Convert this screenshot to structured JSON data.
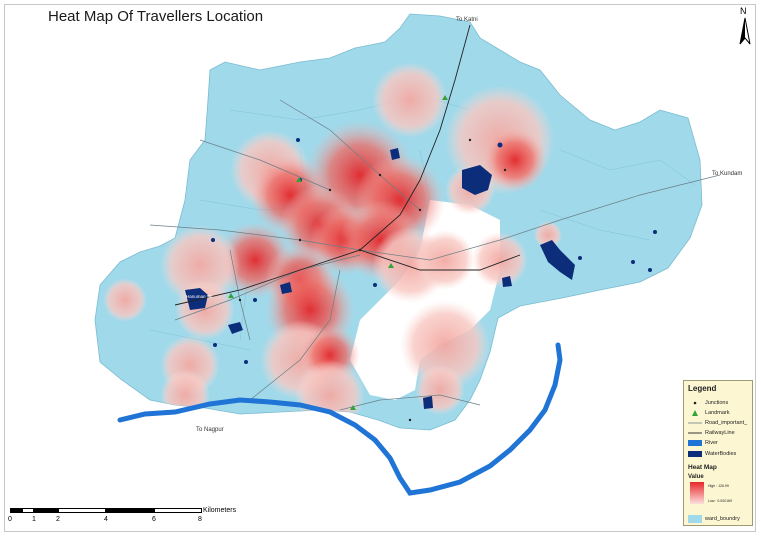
{
  "title": "Heat Map Of Travellers Location",
  "north_arrow": {
    "label": "N",
    "icon": "north-arrow-icon"
  },
  "directions": {
    "to_katni": "To Katni",
    "to_kundam": "To Kundam",
    "to_nagpur": "To Nagpur"
  },
  "water_label": "Hanuman Tal",
  "colors": {
    "ward_boundary": "#9fd9ea",
    "river": "#1f74d6",
    "water_bodies": "#0c2d7a",
    "heat_high": "#e8262a",
    "heat_low": "#fbe0dd",
    "roads": "#6b7f86",
    "railway": "#222222",
    "legend_bg": "#fdf6d3"
  },
  "legend": {
    "title": "Legend",
    "items": [
      {
        "label": "Junctions",
        "icon": "junction-dot-icon"
      },
      {
        "label": "Landmark",
        "icon": "landmark-triangle-icon"
      },
      {
        "label": "Road_important_",
        "icon": "road-line-icon"
      },
      {
        "label": "RailwayLine",
        "icon": "railway-line-icon"
      },
      {
        "label": "River",
        "icon": "river-swatch-icon"
      },
      {
        "label": "WaterBodies",
        "icon": "waterbody-swatch-icon"
      }
    ],
    "heat_map_title": "Heat Map",
    "heat_map_value": "Value",
    "heat_high": "High : 126.99",
    "heat_low": "Low : 0.000169",
    "ward_boundary": "ward_boundry"
  },
  "scale_bar": {
    "ticks": [
      "0",
      "1",
      "2",
      "4",
      "6",
      "8"
    ],
    "unit": "Kilometers"
  }
}
